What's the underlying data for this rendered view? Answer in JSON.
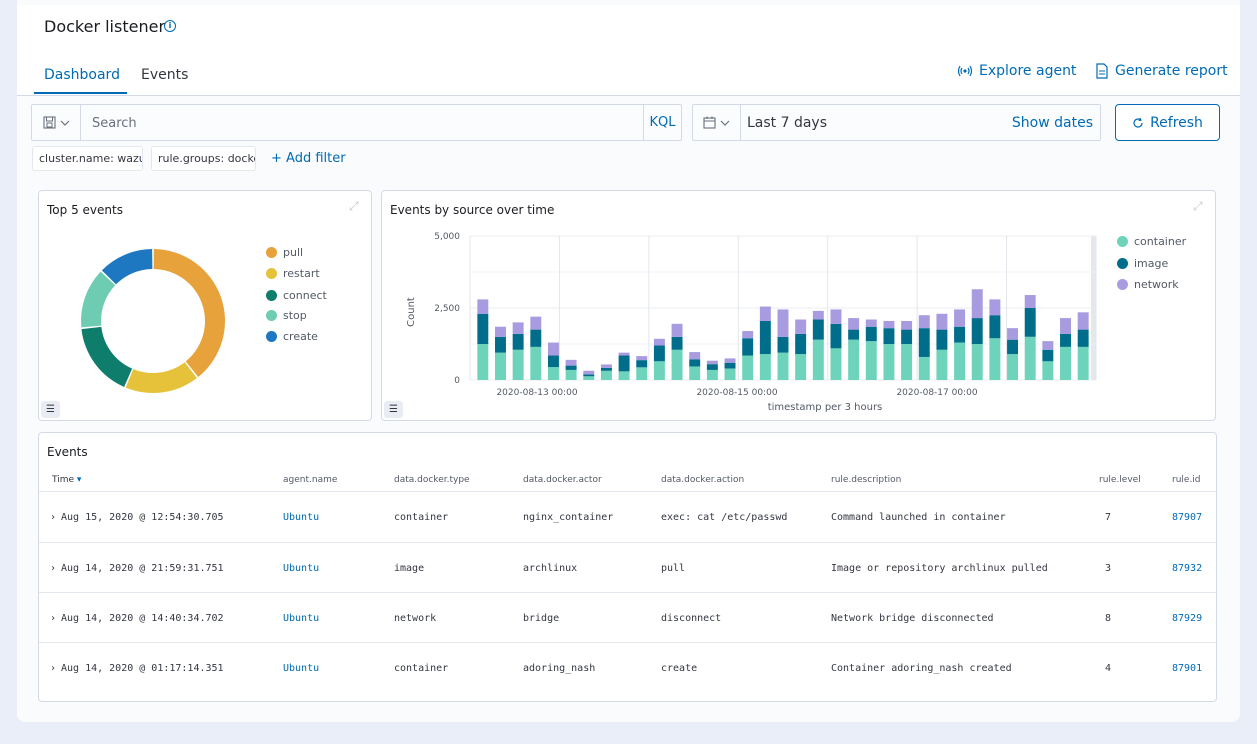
{
  "page": {
    "title": "Docker listener"
  },
  "tabs": [
    {
      "label": "Dashboard"
    },
    {
      "label": "Events"
    }
  ],
  "header_actions": {
    "explore_agent": "Explore agent",
    "generate_report": "Generate report"
  },
  "search": {
    "placeholder": "Search",
    "language": "KQL"
  },
  "date_picker": {
    "range": "Last 7 days",
    "show_dates": "Show dates"
  },
  "refresh_label": "Refresh",
  "filters": [
    {
      "label": "cluster.name: wazuh"
    },
    {
      "label": "rule.groups: docker"
    }
  ],
  "add_filter_label": "+ Add filter",
  "colors": {
    "accent": "#006bb4",
    "pull": "#e7a23c",
    "restart": "#e6c23a",
    "connect": "#0e7d6b",
    "stop": "#6dccb1",
    "create": "#1e78c1",
    "container": "#6dd3bb",
    "image": "#006e8a",
    "network": "#a99be0"
  },
  "top5": {
    "title": "Top 5 events",
    "legend": [
      {
        "label": "pull"
      },
      {
        "label": "restart"
      },
      {
        "label": "connect"
      },
      {
        "label": "stop"
      },
      {
        "label": "create"
      }
    ]
  },
  "events_chart": {
    "title": "Events by source over time",
    "legend": [
      {
        "label": "container"
      },
      {
        "label": "image"
      },
      {
        "label": "network"
      }
    ]
  },
  "chart_data": [
    {
      "type": "pie",
      "title": "Top 5 events",
      "categories": [
        "pull",
        "restart",
        "connect",
        "stop",
        "create"
      ],
      "values": [
        37,
        16,
        16,
        13,
        12
      ]
    },
    {
      "type": "bar",
      "title": "Events by source over time",
      "xlabel": "timestamp per 3 hours",
      "ylabel": "Count",
      "ylim": [
        0,
        5000
      ],
      "y_ticks": [
        "0",
        "2,500",
        "5,000"
      ],
      "x_ticks": [
        "2020-08-13 00:00",
        "2020-08-15 00:00",
        "2020-08-17 00:00"
      ],
      "stacked": true,
      "series": [
        {
          "name": "container",
          "values": [
            1250,
            950,
            1050,
            1150,
            450,
            350,
            130,
            320,
            300,
            440,
            650,
            1050,
            470,
            350,
            400,
            850,
            900,
            950,
            900,
            1400,
            1100,
            1400,
            1350,
            1250,
            1250,
            800,
            1050,
            1300,
            1250,
            1450,
            900,
            1500,
            650,
            1150,
            1150
          ]
        },
        {
          "name": "image",
          "values": [
            1050,
            550,
            550,
            600,
            400,
            150,
            60,
            100,
            550,
            250,
            550,
            450,
            250,
            200,
            200,
            600,
            1150,
            550,
            700,
            700,
            850,
            350,
            500,
            550,
            500,
            1000,
            700,
            550,
            900,
            800,
            500,
            1000,
            400,
            450,
            600
          ]
        },
        {
          "name": "network",
          "values": [
            500,
            350,
            400,
            450,
            450,
            200,
            130,
            120,
            100,
            140,
            230,
            450,
            250,
            120,
            150,
            250,
            500,
            950,
            500,
            300,
            500,
            400,
            250,
            250,
            300,
            450,
            550,
            600,
            1000,
            550,
            400,
            450,
            300,
            550,
            600
          ]
        }
      ],
      "legend_position": "right"
    }
  ],
  "events_table": {
    "title": "Events",
    "columns": [
      "Time",
      "agent.name",
      "data.docker.type",
      "data.docker.actor",
      "data.docker.action",
      "rule.description",
      "rule.level",
      "rule.id"
    ],
    "rows": [
      {
        "time": "Aug 15, 2020 @ 12:54:30.705",
        "agent": "Ubuntu",
        "type": "container",
        "actor": "nginx_container",
        "action": "exec: cat /etc/passwd",
        "description": "Command launched in container",
        "level": "7",
        "id": "87907"
      },
      {
        "time": "Aug 14, 2020 @ 21:59:31.751",
        "agent": "Ubuntu",
        "type": "image",
        "actor": "archlinux",
        "action": "pull",
        "description": "Image or repository archlinux pulled",
        "level": "3",
        "id": "87932"
      },
      {
        "time": "Aug 14, 2020 @ 14:40:34.702",
        "agent": "Ubuntu",
        "type": "network",
        "actor": "bridge",
        "action": "disconnect",
        "description": "Network bridge disconnected",
        "level": "8",
        "id": "87929"
      },
      {
        "time": "Aug 14, 2020 @ 01:17:14.351",
        "agent": "Ubuntu",
        "type": "container",
        "actor": "adoring_nash",
        "action": "create",
        "description": "Container adoring_nash created",
        "level": "4",
        "id": "87901"
      }
    ]
  }
}
